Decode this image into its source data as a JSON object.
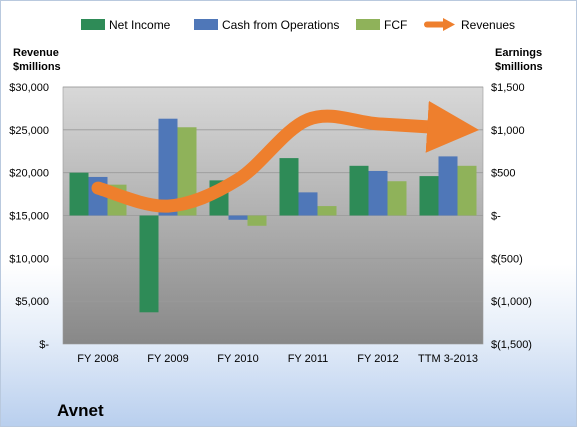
{
  "chart_data": {
    "type": "bar",
    "title": "",
    "company": "Avnet",
    "categories": [
      "FY 2008",
      "FY 2009",
      "FY 2010",
      "FY 2011",
      "FY 2012",
      "TTM 3-2013"
    ],
    "left_axis": {
      "label_line1": "Revenue",
      "label_line2": "$millions",
      "ylim": [
        0,
        30000
      ],
      "ticks": [
        0,
        5000,
        10000,
        15000,
        20000,
        25000,
        30000
      ],
      "tick_labels": [
        "$-",
        "$5,000",
        "$10,000",
        "$15,000",
        "$20,000",
        "$25,000",
        "$30,000"
      ]
    },
    "right_axis": {
      "label_line1": "Earnings",
      "label_line2": "$millions",
      "ylim": [
        -1500,
        1500
      ],
      "ticks": [
        -1500,
        -1000,
        -500,
        0,
        500,
        1000,
        1500
      ],
      "tick_labels": [
        "$(1,500)",
        "$(1,000)",
        "$(500)",
        "$-",
        "$500",
        "$1,000",
        "$1,500"
      ]
    },
    "series": [
      {
        "name": "Net Income",
        "axis": "right",
        "kind": "bar",
        "color": "#2e8b57",
        "values": [
          500,
          -1130,
          410,
          670,
          580,
          460
        ]
      },
      {
        "name": "Cash from Operations",
        "axis": "right",
        "kind": "bar",
        "color": "#4f77b8",
        "values": [
          450,
          1130,
          -50,
          270,
          520,
          690
        ]
      },
      {
        "name": "FCF",
        "axis": "right",
        "kind": "bar",
        "color": "#8fb25a",
        "values": [
          360,
          1030,
          -120,
          110,
          400,
          580
        ]
      },
      {
        "name": "Revenues",
        "axis": "left",
        "kind": "line",
        "color": "#ee7f2d",
        "values": [
          18200,
          16100,
          19200,
          26200,
          25700,
          25200
        ]
      }
    ],
    "grid": true,
    "legend": "top"
  }
}
